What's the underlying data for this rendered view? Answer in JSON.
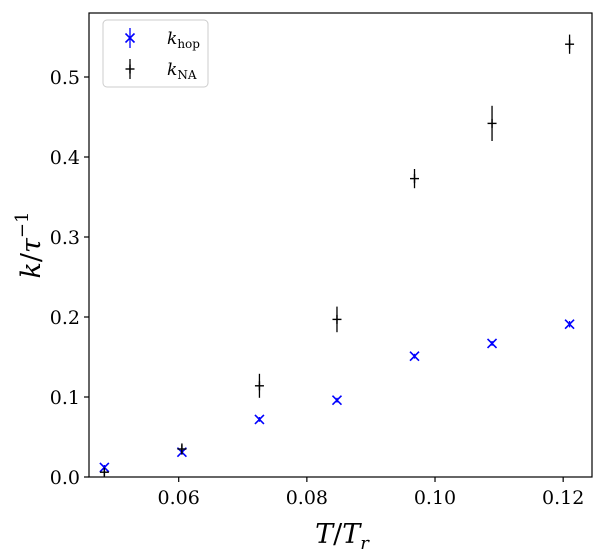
{
  "chart_data": {
    "type": "scatter",
    "xlabel": "T/T_r",
    "ylabel": "k/τ^-1",
    "xlim": [
      0.046,
      0.1245
    ],
    "ylim": [
      0.0,
      0.58
    ],
    "xticks": [
      0.06,
      0.08,
      0.1,
      0.12
    ],
    "xtick_labels": [
      "0.06",
      "0.08",
      "0.10",
      "0.12"
    ],
    "yticks": [
      0.0,
      0.1,
      0.2,
      0.3,
      0.4,
      0.5
    ],
    "ytick_labels": [
      "0.0",
      "0.1",
      "0.2",
      "0.3",
      "0.4",
      "0.5"
    ],
    "legend_position": "top-left",
    "grid": false,
    "series": [
      {
        "name": "k_hop",
        "name_main": "k",
        "name_sub": "hop",
        "marker": "x",
        "color": "#0000ff",
        "x": [
          0.0484,
          0.0605,
          0.0726,
          0.0847,
          0.0968,
          0.1089,
          0.121
        ],
        "y": [
          0.012,
          0.031,
          0.072,
          0.096,
          0.151,
          0.167,
          0.191
        ],
        "yerr": [
          0.003,
          0.003,
          0.003,
          0.003,
          0.003,
          0.003,
          0.004
        ]
      },
      {
        "name": "k_NA",
        "name_main": "k",
        "name_sub": "NA",
        "marker": "+",
        "color": "#000000",
        "x": [
          0.0484,
          0.0605,
          0.0726,
          0.0847,
          0.0968,
          0.1089,
          0.121
        ],
        "y": [
          0.006,
          0.035,
          0.114,
          0.197,
          0.373,
          0.442,
          0.541
        ],
        "yerr": [
          0.005,
          0.007,
          0.015,
          0.016,
          0.012,
          0.022,
          0.012
        ]
      }
    ]
  }
}
